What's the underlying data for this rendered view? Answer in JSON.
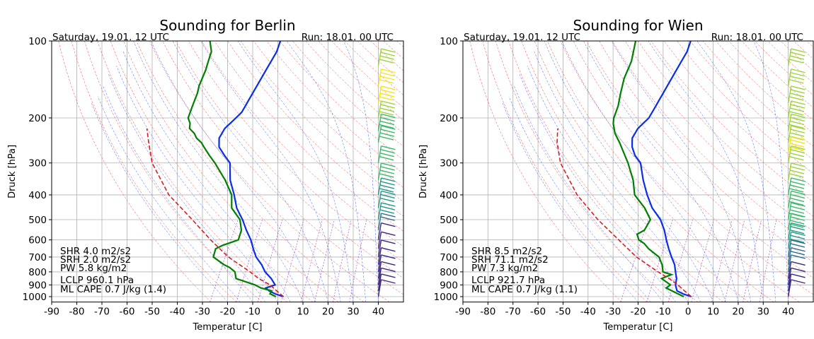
{
  "chart_data": [
    {
      "type": "line",
      "title": "Sounding for Berlin",
      "left_header": "Saturday, 19.01. 12 UTC",
      "right_header": "Run: 18.01. 00 UTC",
      "xlabel": "Temperatur [C]",
      "ylabel": "Druck [hPa]",
      "xlim": [
        -90,
        50
      ],
      "ylim": [
        1050,
        100
      ],
      "y_scale": "log",
      "grid": true,
      "x_ticks": [
        -90,
        -80,
        -70,
        -60,
        -50,
        -40,
        -30,
        -20,
        -10,
        0,
        10,
        20,
        30,
        40
      ],
      "y_ticks": [
        100,
        200,
        300,
        400,
        500,
        600,
        700,
        800,
        900,
        1000
      ],
      "stats": [
        "SHR 4.0 m2/s2",
        "SRH 2.0 m2/s2",
        "PW 5.8 kg/m2",
        "LCLP 960.1 hPa",
        "ML CAPE 0.7 J/kg (1.4)"
      ],
      "series": [
        {
          "role": "temperature",
          "color": "#0a2ee8",
          "p": [
            1000,
            975,
            950,
            925,
            900,
            850,
            800,
            750,
            700,
            650,
            600,
            550,
            500,
            450,
            400,
            350,
            300,
            280,
            260,
            250,
            240,
            230,
            220,
            210,
            200,
            190,
            180,
            170,
            160,
            150,
            140,
            130,
            120,
            110,
            100
          ],
          "t": [
            1,
            -3,
            -6,
            -8,
            -5,
            -8,
            -12,
            -15,
            -19,
            -22,
            -25,
            -29,
            -33,
            -38,
            -42,
            -47,
            -51,
            -55,
            -59,
            -60,
            -61,
            -61,
            -61,
            -60,
            -59,
            -58,
            -58,
            -58,
            -58,
            -58,
            -58,
            -58,
            -58,
            -58,
            -59
          ]
        },
        {
          "role": "dewpoint",
          "color": "#008000",
          "p": [
            1000,
            975,
            950,
            925,
            900,
            850,
            800,
            770,
            750,
            700,
            650,
            630,
            600,
            550,
            500,
            450,
            400,
            350,
            300,
            280,
            260,
            250,
            240,
            230,
            220,
            210,
            200,
            180,
            160,
            150,
            130,
            120,
            110,
            100
          ],
          "t": [
            -2,
            -5,
            -5,
            -10,
            -13,
            -22,
            -24,
            -27,
            -30,
            -36,
            -37,
            -35,
            -30,
            -31,
            -34,
            -40,
            -43,
            -49,
            -57,
            -61,
            -65,
            -67,
            -70,
            -72,
            -75,
            -76,
            -78,
            -79,
            -80,
            -81,
            -82,
            -83,
            -84,
            -87
          ]
        },
        {
          "role": "parcel",
          "color": "#e31a1c",
          "dashed": true,
          "p": [
            1000,
            975,
            950,
            900,
            850,
            800,
            700,
            600,
            500,
            400,
            300,
            250,
            220
          ],
          "t": [
            1,
            -1,
            -3,
            -7,
            -13,
            -18,
            -30,
            -41,
            -53,
            -68,
            -82,
            -88,
            -92
          ]
        }
      ],
      "wind_barbs": [
        {
          "p": 100,
          "speed": 90
        },
        {
          "p": 125,
          "speed": 75
        },
        {
          "p": 150,
          "speed": 80
        },
        {
          "p": 175,
          "speed": 80
        },
        {
          "p": 200,
          "speed": 70
        },
        {
          "p": 225,
          "speed": 55
        },
        {
          "p": 250,
          "speed": 50
        },
        {
          "p": 300,
          "speed": 45
        },
        {
          "p": 350,
          "speed": 40
        },
        {
          "p": 400,
          "speed": 35
        },
        {
          "p": 450,
          "speed": 30
        },
        {
          "p": 500,
          "speed": 25
        },
        {
          "p": 550,
          "speed": 15
        },
        {
          "p": 600,
          "speed": 10
        },
        {
          "p": 650,
          "speed": 8
        },
        {
          "p": 700,
          "speed": 8
        },
        {
          "p": 750,
          "speed": 8
        },
        {
          "p": 800,
          "speed": 8
        },
        {
          "p": 850,
          "speed": 8
        },
        {
          "p": 900,
          "speed": 5
        },
        {
          "p": 950,
          "speed": 5
        },
        {
          "p": 1000,
          "speed": 3
        }
      ]
    },
    {
      "type": "line",
      "title": "Sounding for Wien",
      "left_header": "Saturday, 19.01. 12 UTC",
      "right_header": "Run: 18.01. 00 UTC",
      "xlabel": "Temperatur [C]",
      "ylabel": "Druck [hPa]",
      "xlim": [
        -90,
        50
      ],
      "ylim": [
        1050,
        100
      ],
      "y_scale": "log",
      "grid": true,
      "x_ticks": [
        -90,
        -80,
        -70,
        -60,
        -50,
        -40,
        -30,
        -20,
        -10,
        0,
        10,
        20,
        30,
        40
      ],
      "y_ticks": [
        100,
        200,
        300,
        400,
        500,
        600,
        700,
        800,
        900,
        1000
      ],
      "stats": [
        "SHR 8.5 m2/s2",
        "SRH 71.1 m2/s2",
        "PW 7.3 kg/m2",
        "LCLP 921.7 hPa",
        "ML CAPE 0.7 J/kg (1.1)"
      ],
      "series": [
        {
          "role": "temperature",
          "color": "#0a2ee8",
          "p": [
            1000,
            975,
            950,
            925,
            900,
            850,
            800,
            750,
            700,
            650,
            600,
            550,
            500,
            450,
            400,
            350,
            300,
            280,
            260,
            250,
            240,
            230,
            220,
            210,
            200,
            190,
            180,
            170,
            160,
            150,
            140,
            130,
            120,
            110,
            100
          ],
          "t": [
            0,
            -4,
            -7,
            -8,
            -9,
            -10,
            -12,
            -14,
            -17,
            -20,
            -23,
            -26,
            -30,
            -36,
            -41,
            -46,
            -51,
            -55,
            -58,
            -59,
            -60,
            -60,
            -60,
            -59,
            -58,
            -58,
            -58,
            -58,
            -58,
            -58,
            -58,
            -58,
            -58,
            -58,
            -59
          ]
        },
        {
          "role": "dewpoint",
          "color": "#008000",
          "p": [
            1000,
            975,
            950,
            925,
            900,
            850,
            820,
            800,
            750,
            700,
            650,
            620,
            600,
            570,
            550,
            500,
            450,
            400,
            350,
            300,
            250,
            230,
            210,
            200,
            180,
            160,
            140,
            120,
            100
          ],
          "t": [
            -3,
            -6,
            -9,
            -12,
            -11,
            -16,
            -13,
            -17,
            -19,
            -22,
            -28,
            -31,
            -34,
            -36,
            -34,
            -34,
            -39,
            -46,
            -50,
            -56,
            -64,
            -68,
            -71,
            -72,
            -73,
            -75,
            -77,
            -78,
            -81
          ]
        },
        {
          "role": "parcel",
          "color": "#e31a1c",
          "dashed": true,
          "p": [
            1000,
            975,
            950,
            900,
            850,
            800,
            700,
            600,
            500,
            400,
            300,
            250,
            220
          ],
          "t": [
            0,
            -2,
            -4,
            -8,
            -13,
            -19,
            -31,
            -42,
            -55,
            -69,
            -83,
            -89,
            -92
          ]
        }
      ],
      "wind_barbs": [
        {
          "p": 100,
          "speed": 60
        },
        {
          "p": 125,
          "speed": 60
        },
        {
          "p": 150,
          "speed": 60
        },
        {
          "p": 175,
          "speed": 60
        },
        {
          "p": 200,
          "speed": 60
        },
        {
          "p": 225,
          "speed": 70
        },
        {
          "p": 250,
          "speed": 75
        },
        {
          "p": 275,
          "speed": 90
        },
        {
          "p": 300,
          "speed": 70
        },
        {
          "p": 350,
          "speed": 65
        },
        {
          "p": 400,
          "speed": 55
        },
        {
          "p": 450,
          "speed": 50
        },
        {
          "p": 500,
          "speed": 45
        },
        {
          "p": 550,
          "speed": 40
        },
        {
          "p": 600,
          "speed": 30
        },
        {
          "p": 650,
          "speed": 25
        },
        {
          "p": 700,
          "speed": 20
        },
        {
          "p": 750,
          "speed": 15
        },
        {
          "p": 800,
          "speed": 12
        },
        {
          "p": 850,
          "speed": 10
        },
        {
          "p": 900,
          "speed": 8
        },
        {
          "p": 950,
          "speed": 5
        },
        {
          "p": 1000,
          "speed": 5
        }
      ]
    }
  ]
}
